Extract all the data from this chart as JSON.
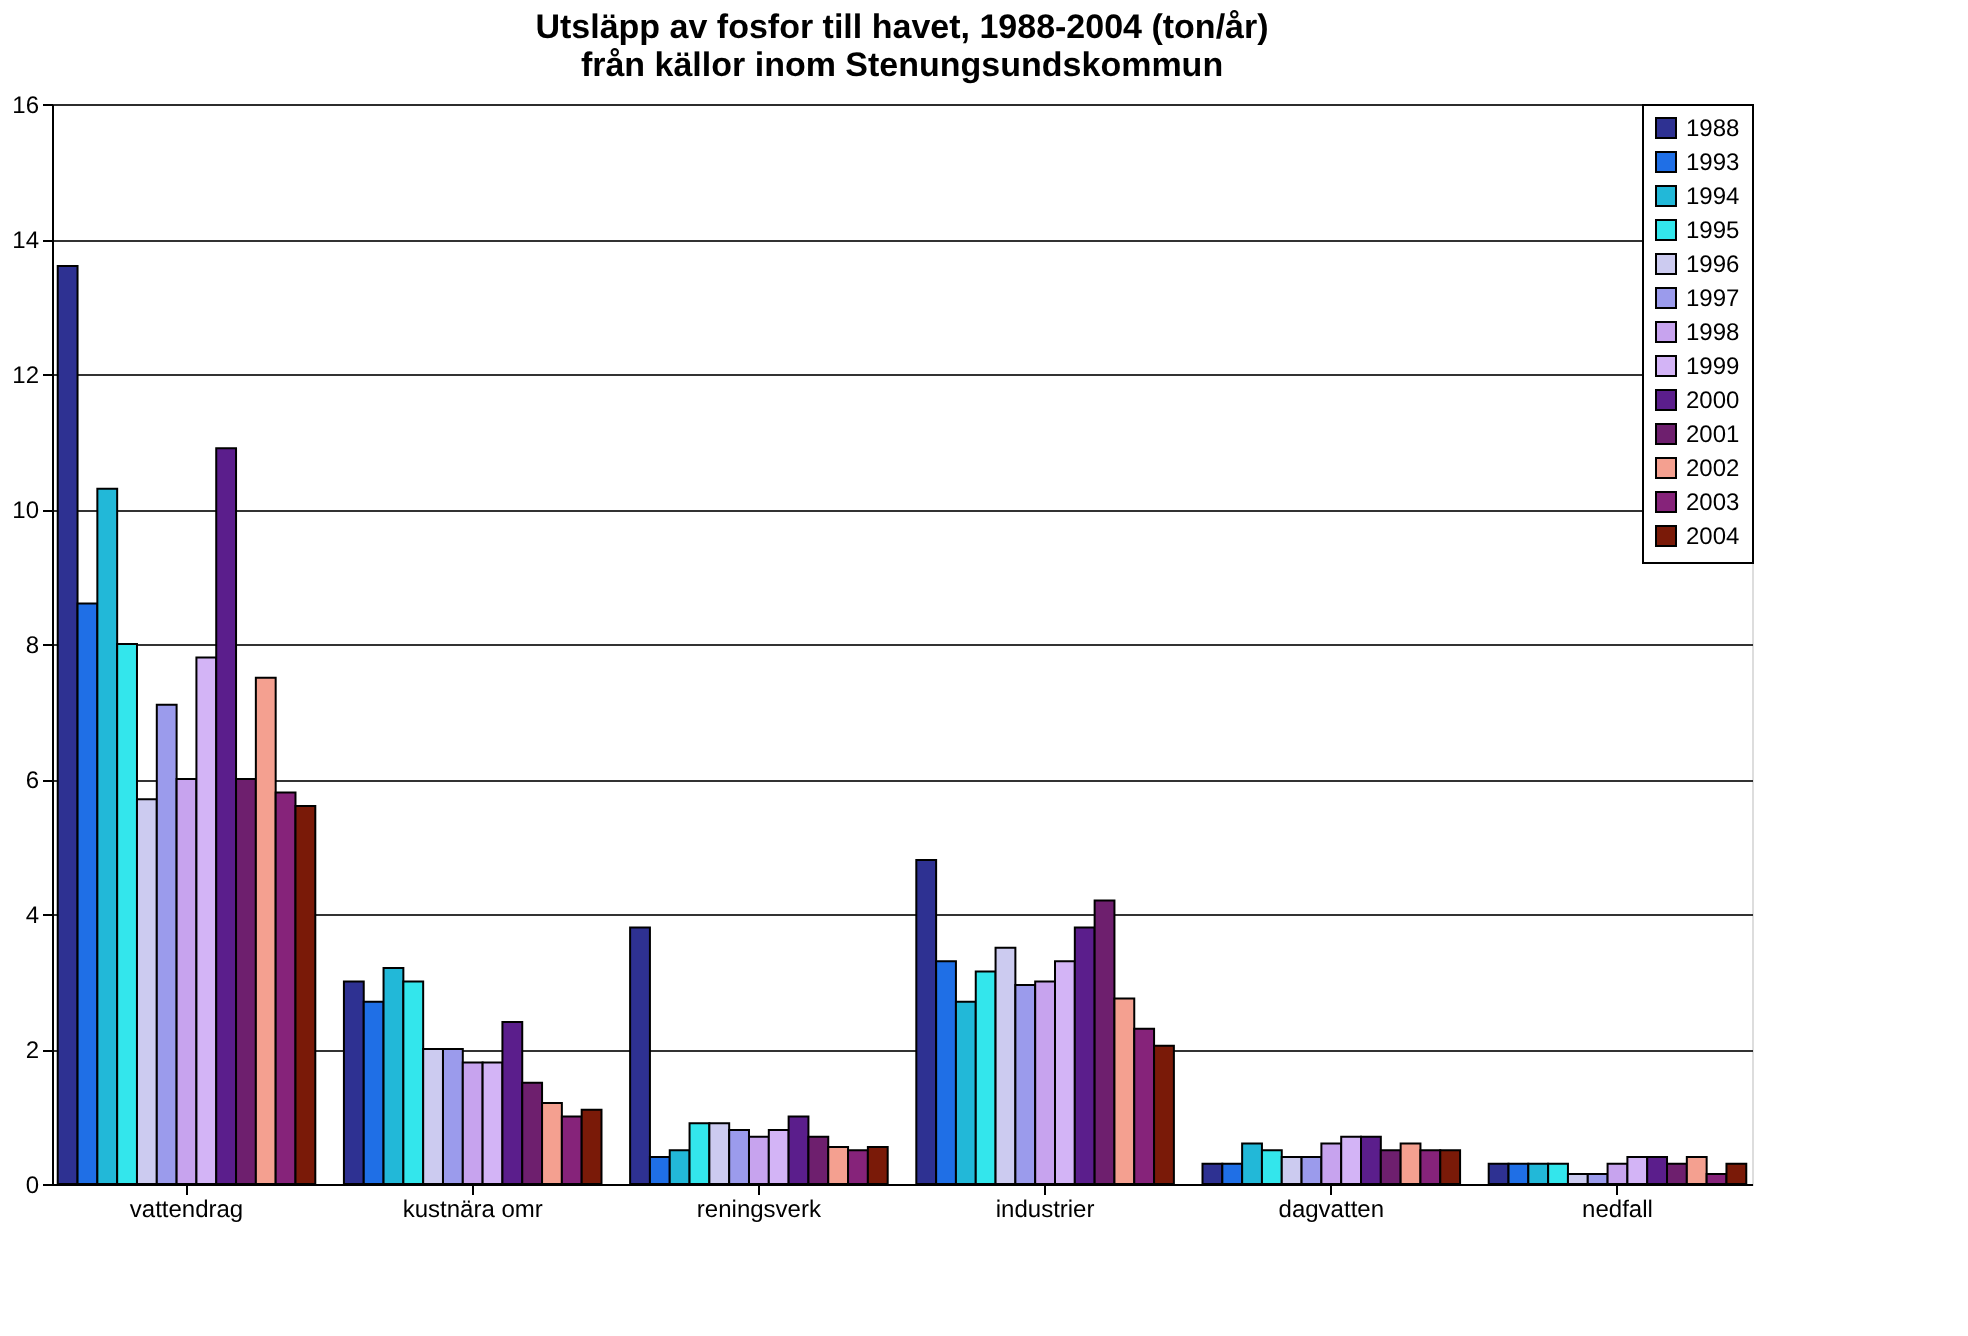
{
  "chart_data": {
    "type": "bar",
    "title": "Utsläpp av fosfor till havet, 1988-2004 (ton/år)\nfrån källor inom Stenungsundskommun",
    "categories": [
      "vattendrag",
      "kustnära omr",
      "reningsverk",
      "industrier",
      "dagvatten",
      "nedfall"
    ],
    "series": [
      {
        "name": "1988",
        "color": "#2e3192",
        "values": [
          13.6,
          3.0,
          3.8,
          4.8,
          0.3,
          0.3
        ]
      },
      {
        "name": "1993",
        "color": "#1f6fe6",
        "values": [
          8.6,
          2.7,
          0.4,
          3.3,
          0.3,
          0.3
        ]
      },
      {
        "name": "1994",
        "color": "#22b8d8",
        "values": [
          10.3,
          3.2,
          0.5,
          2.7,
          0.6,
          0.3
        ]
      },
      {
        "name": "1995",
        "color": "#33e6ec",
        "values": [
          8.0,
          3.0,
          0.9,
          3.15,
          0.5,
          0.3
        ]
      },
      {
        "name": "1996",
        "color": "#cccbf0",
        "values": [
          5.7,
          2.0,
          0.9,
          3.5,
          0.4,
          0.15
        ]
      },
      {
        "name": "1997",
        "color": "#9b9bec",
        "values": [
          7.1,
          2.0,
          0.8,
          2.95,
          0.4,
          0.15
        ]
      },
      {
        "name": "1998",
        "color": "#c7a3ee",
        "values": [
          6.0,
          1.8,
          0.7,
          3.0,
          0.6,
          0.3
        ]
      },
      {
        "name": "1999",
        "color": "#d3b4f6",
        "values": [
          7.8,
          1.8,
          0.8,
          3.3,
          0.7,
          0.4
        ]
      },
      {
        "name": "2000",
        "color": "#5b1e8c",
        "values": [
          10.9,
          2.4,
          1.0,
          3.8,
          0.7,
          0.4
        ]
      },
      {
        "name": "2001",
        "color": "#6e1f6e",
        "values": [
          6.0,
          1.5,
          0.7,
          4.2,
          0.5,
          0.3
        ]
      },
      {
        "name": "2002",
        "color": "#f4a090",
        "values": [
          7.5,
          1.2,
          0.55,
          2.75,
          0.6,
          0.4
        ]
      },
      {
        "name": "2003",
        "color": "#86237a",
        "values": [
          5.8,
          1.0,
          0.5,
          2.3,
          0.5,
          0.15
        ]
      },
      {
        "name": "2004",
        "color": "#7a1a08",
        "values": [
          5.6,
          1.1,
          0.55,
          2.05,
          0.5,
          0.3
        ]
      }
    ],
    "ylim": [
      0,
      16
    ],
    "yticks": [
      0,
      2,
      4,
      6,
      8,
      10,
      12,
      14,
      16
    ],
    "grid": "y",
    "legend": "top right"
  }
}
